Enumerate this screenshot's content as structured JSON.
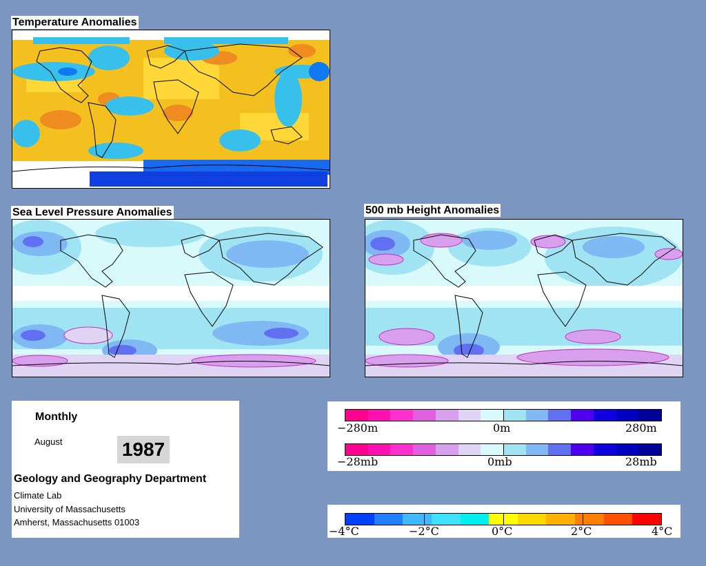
{
  "panels": {
    "temperature": {
      "title": "Temperature Anomalies"
    },
    "slp": {
      "title": "Sea Level Pressure Anomalies"
    },
    "height500": {
      "title": "500 mb Height Anomalies"
    }
  },
  "info": {
    "period": "Monthly",
    "month": "August",
    "year": "1987",
    "department": "Geology and Geography Department",
    "lab": "Climate Lab",
    "university": "University of Massachusetts",
    "address": "Amherst, Massachusetts 01003"
  },
  "legends": {
    "height": {
      "min": "−280m",
      "mid": "0m",
      "max": "280m"
    },
    "pressure": {
      "min": "−28mb",
      "mid": "0mb",
      "max": "28mb"
    },
    "temperature": {
      "labels": [
        "−4°C",
        "−2°C",
        "0°C",
        "2°C",
        "4°C"
      ]
    }
  },
  "colors": {
    "background": "#7b96c0",
    "anomaly_scale": [
      "#ff0090",
      "#ff10b0",
      "#ff30d0",
      "#e060e0",
      "#d8a0ec",
      "#e0d4f4",
      "#d8fafa",
      "#a0e4f4",
      "#80b8f4",
      "#6070f0",
      "#5000f0",
      "#1000e0",
      "#0000c0",
      "#000098"
    ],
    "temperature_scale": [
      "#0040ff",
      "#2080ff",
      "#40b8ff",
      "#40e0ff",
      "#00f0f0",
      "#ffff00",
      "#ffd800",
      "#ffb000",
      "#ff8000",
      "#ff5000",
      "#ff0000"
    ]
  }
}
